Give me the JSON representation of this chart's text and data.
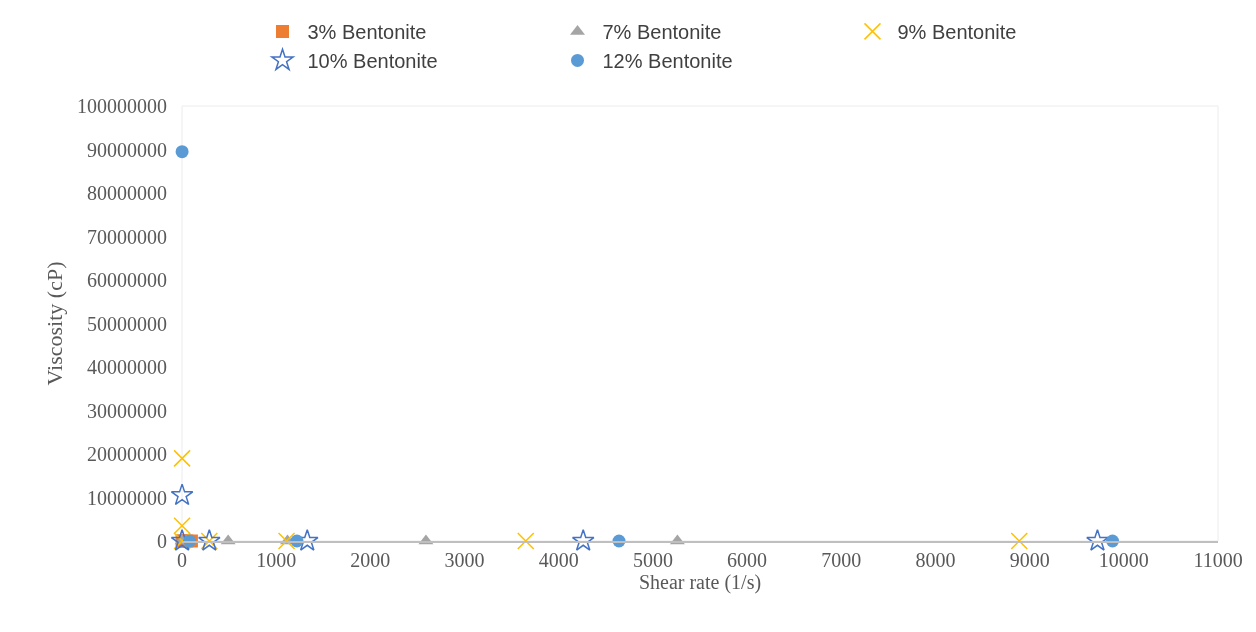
{
  "chart_data": {
    "type": "scatter",
    "xlabel": "Shear rate (1/s)",
    "ylabel": "Viscosity (cP)",
    "legend": "top",
    "grid": false,
    "xlim": [
      0,
      11000
    ],
    "xticks": [
      0,
      1000,
      2000,
      3000,
      4000,
      5000,
      6000,
      7000,
      8000,
      9000,
      10000,
      11000
    ],
    "ylim": [
      0,
      100000000
    ],
    "yticks": [
      0,
      10000000,
      20000000,
      30000000,
      40000000,
      50000000,
      60000000,
      70000000,
      80000000,
      90000000,
      100000000
    ],
    "series": [
      {
        "name": "3% Bentonite",
        "color": "#ed7d31",
        "marker": "square",
        "x": [
          1,
          10,
          50,
          100
        ],
        "values": [
          0,
          0,
          0,
          0
        ]
      },
      {
        "name": "7% Bentonite",
        "color": "#a5a5a5",
        "marker": "triangle",
        "x": [
          1,
          490,
          1120,
          2590,
          5260
        ],
        "values": [
          0,
          0,
          0,
          0,
          0
        ]
      },
      {
        "name": "9% Bentonite",
        "color": "#ffc000",
        "marker": "cross",
        "x": [
          1,
          1,
          1,
          290,
          1110,
          3650,
          8890
        ],
        "values": [
          19000000,
          3500000,
          0,
          0,
          0,
          0,
          0
        ]
      },
      {
        "name": "10% Bentonite",
        "color": "#4472c4",
        "marker": "star",
        "x": [
          1,
          1,
          290,
          1330,
          4260,
          9720
        ],
        "values": [
          10500000,
          0,
          0,
          0,
          0,
          0
        ]
      },
      {
        "name": "12% Bentonite",
        "color": "#5b9bd5",
        "marker": "circle",
        "x": [
          1,
          80,
          1220,
          4640,
          9880
        ],
        "values": [
          89500000,
          0,
          0,
          0,
          0
        ]
      }
    ]
  }
}
